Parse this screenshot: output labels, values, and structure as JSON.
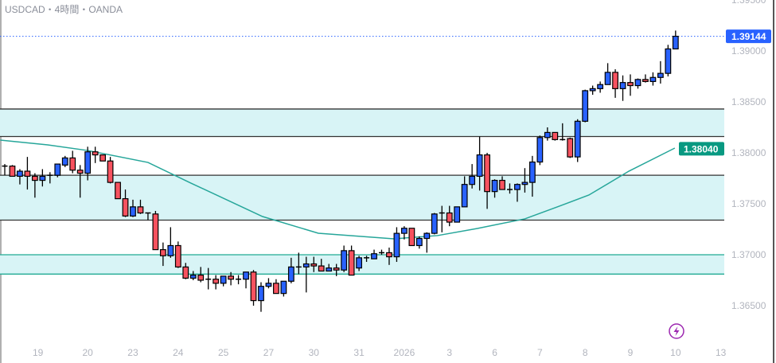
{
  "header": {
    "title": "USDCAD・4時間・OANDA"
  },
  "colors": {
    "up": "#2962ff",
    "down": "#f7525f",
    "ma": "#26a69a",
    "zone_fill": "#d8f4f6",
    "zone_line": "#333333",
    "zone_line_teal": "#22ab94",
    "price_badge": "#2962ff",
    "ma_badge": "#089981",
    "lightning": "#9c27b0"
  },
  "chart_data": {
    "type": "candlestick",
    "symbol": "USDCAD",
    "timeframe": "4時間",
    "source": "OANDA",
    "ylim": [
      1.3635,
      1.3956
    ],
    "y_ticks": [
      "1.39500",
      "1.39000",
      "1.38500",
      "1.38000",
      "1.37500",
      "1.37000",
      "1.36500"
    ],
    "y_tick_values": [
      1.395,
      1.39,
      1.385,
      1.38,
      1.375,
      1.37,
      1.365
    ],
    "x_ticks": [
      {
        "label": "19",
        "index": 4.4
      },
      {
        "label": "20",
        "index": 11
      },
      {
        "label": "23",
        "index": 17
      },
      {
        "label": "24",
        "index": 23
      },
      {
        "label": "25",
        "index": 29
      },
      {
        "label": "27",
        "index": 35
      },
      {
        "label": "30",
        "index": 41
      },
      {
        "label": "31",
        "index": 47
      },
      {
        "label": "2026",
        "index": 53
      },
      {
        "label": "3",
        "index": 59
      },
      {
        "label": "6",
        "index": 65
      },
      {
        "label": "7",
        "index": 71
      },
      {
        "label": "8",
        "index": 77
      },
      {
        "label": "9",
        "index": 83
      },
      {
        "label": "10",
        "index": 89
      },
      {
        "label": "13",
        "index": 95
      }
    ],
    "ohlc": [
      [
        1.3787,
        1.3789,
        1.3778,
        1.3787
      ],
      [
        1.3787,
        1.3788,
        1.3777,
        1.3777
      ],
      [
        1.3777,
        1.3784,
        1.3769,
        1.3782
      ],
      [
        1.3782,
        1.3796,
        1.3764,
        1.3777
      ],
      [
        1.3777,
        1.378,
        1.3756,
        1.3773
      ],
      [
        1.3773,
        1.3784,
        1.3767,
        1.3777
      ],
      [
        1.3778,
        1.3781,
        1.377,
        1.3778
      ],
      [
        1.3778,
        1.3789,
        1.3776,
        1.3789
      ],
      [
        1.3788,
        1.3797,
        1.3786,
        1.3795
      ],
      [
        1.3795,
        1.3802,
        1.378,
        1.3783
      ],
      [
        1.3783,
        1.3788,
        1.3756,
        1.378
      ],
      [
        1.378,
        1.3806,
        1.3773,
        1.3801
      ],
      [
        1.3801,
        1.3806,
        1.379,
        1.3798
      ],
      [
        1.3798,
        1.3798,
        1.3792,
        1.3792
      ],
      [
        1.3792,
        1.3796,
        1.377,
        1.3771
      ],
      [
        1.3771,
        1.3771,
        1.3755,
        1.3755
      ],
      [
        1.3755,
        1.3764,
        1.3737,
        1.3738
      ],
      [
        1.3738,
        1.3754,
        1.3737,
        1.3747
      ],
      [
        1.3747,
        1.3754,
        1.374,
        1.3741
      ],
      [
        1.3741,
        1.3741,
        1.3734,
        1.374
      ],
      [
        1.374,
        1.3743,
        1.3705,
        1.3705
      ],
      [
        1.3705,
        1.3712,
        1.3689,
        1.3699
      ],
      [
        1.3699,
        1.3727,
        1.3697,
        1.3709
      ],
      [
        1.3709,
        1.3713,
        1.3687,
        1.3688
      ],
      [
        1.3688,
        1.3692,
        1.3676,
        1.3677
      ],
      [
        1.3677,
        1.3684,
        1.3675,
        1.368
      ],
      [
        1.368,
        1.3688,
        1.3673,
        1.3675
      ],
      [
        1.3676,
        1.3687,
        1.3666,
        1.3676
      ],
      [
        1.3676,
        1.368,
        1.3666,
        1.3672
      ],
      [
        1.3672,
        1.3679,
        1.3669,
        1.3679
      ],
      [
        1.3679,
        1.3683,
        1.367,
        1.3676
      ],
      [
        1.3676,
        1.368,
        1.3671,
        1.3676
      ],
      [
        1.3676,
        1.3683,
        1.3667,
        1.3683
      ],
      [
        1.3683,
        1.3685,
        1.365,
        1.3655
      ],
      [
        1.3655,
        1.3673,
        1.3644,
        1.3669
      ],
      [
        1.3669,
        1.3677,
        1.3667,
        1.3672
      ],
      [
        1.3672,
        1.3676,
        1.3662,
        1.3662
      ],
      [
        1.3662,
        1.3674,
        1.3659,
        1.3674
      ],
      [
        1.3674,
        1.3697,
        1.3672,
        1.3688
      ],
      [
        1.3688,
        1.3702,
        1.3681,
        1.3688
      ],
      [
        1.3688,
        1.3698,
        1.3663,
        1.3691
      ],
      [
        1.3691,
        1.3698,
        1.3683,
        1.3689
      ],
      [
        1.3689,
        1.3696,
        1.3684,
        1.3684
      ],
      [
        1.3684,
        1.3691,
        1.3684,
        1.3687
      ],
      [
        1.3687,
        1.3691,
        1.3679,
        1.3685
      ],
      [
        1.3685,
        1.3709,
        1.3683,
        1.3704
      ],
      [
        1.3704,
        1.3709,
        1.368,
        1.368
      ],
      [
        1.3687,
        1.3699,
        1.3684,
        1.3697
      ],
      [
        1.3697,
        1.3699,
        1.3693,
        1.3697
      ],
      [
        1.3696,
        1.3705,
        1.3696,
        1.3701
      ],
      [
        1.3701,
        1.3705,
        1.37,
        1.3702
      ],
      [
        1.3702,
        1.3707,
        1.369,
        1.3698
      ],
      [
        1.3698,
        1.3727,
        1.3693,
        1.3721
      ],
      [
        1.3721,
        1.3728,
        1.3715,
        1.3726
      ],
      [
        1.3726,
        1.3726,
        1.3709,
        1.3709
      ],
      [
        1.3709,
        1.3718,
        1.3706,
        1.3716
      ],
      [
        1.3716,
        1.3722,
        1.3702,
        1.3721
      ],
      [
        1.3721,
        1.3741,
        1.372,
        1.374
      ],
      [
        1.3741,
        1.3748,
        1.3722,
        1.3741
      ],
      [
        1.3741,
        1.3748,
        1.3728,
        1.3732
      ],
      [
        1.3732,
        1.3747,
        1.3732,
        1.3747
      ],
      [
        1.3747,
        1.3777,
        1.3747,
        1.3769
      ],
      [
        1.3769,
        1.3789,
        1.3765,
        1.3777
      ],
      [
        1.3777,
        1.3816,
        1.3763,
        1.3798
      ],
      [
        1.3798,
        1.38,
        1.3745,
        1.3762
      ],
      [
        1.3762,
        1.3774,
        1.3756,
        1.3773
      ],
      [
        1.3773,
        1.3777,
        1.3764,
        1.3764
      ],
      [
        1.3764,
        1.377,
        1.376,
        1.3764
      ],
      [
        1.3764,
        1.377,
        1.3752,
        1.3769
      ],
      [
        1.3769,
        1.3785,
        1.3761,
        1.3771
      ],
      [
        1.3771,
        1.3797,
        1.3757,
        1.3791
      ],
      [
        1.3791,
        1.3817,
        1.3788,
        1.3815
      ],
      [
        1.3815,
        1.3825,
        1.3812,
        1.382
      ],
      [
        1.382,
        1.382,
        1.3812,
        1.3813
      ],
      [
        1.3813,
        1.3829,
        1.3812,
        1.3813
      ],
      [
        1.3814,
        1.3815,
        1.3795,
        1.3796
      ],
      [
        1.3796,
        1.3833,
        1.3791,
        1.3831
      ],
      [
        1.3831,
        1.3862,
        1.383,
        1.3861
      ],
      [
        1.3861,
        1.3866,
        1.3857,
        1.3863
      ],
      [
        1.3863,
        1.387,
        1.3859,
        1.3867
      ],
      [
        1.3867,
        1.3888,
        1.3867,
        1.3879
      ],
      [
        1.3879,
        1.3882,
        1.3854,
        1.3863
      ],
      [
        1.3863,
        1.3876,
        1.3851,
        1.3869
      ],
      [
        1.3869,
        1.3877,
        1.3856,
        1.3866
      ],
      [
        1.3866,
        1.3873,
        1.3863,
        1.3872
      ],
      [
        1.3872,
        1.3877,
        1.3869,
        1.387
      ],
      [
        1.387,
        1.3879,
        1.3866,
        1.3874
      ],
      [
        1.3874,
        1.389,
        1.3868,
        1.3878
      ],
      [
        1.3878,
        1.3906,
        1.3875,
        1.3902
      ],
      [
        1.3902,
        1.392,
        1.3902,
        1.39144
      ]
    ],
    "moving_average": [
      [
        -0.6,
        1.38125
      ],
      [
        5.7,
        1.38078
      ],
      [
        11,
        1.38023
      ],
      [
        19,
        1.37906
      ],
      [
        24.7,
        1.37703
      ],
      [
        34.2,
        1.37375
      ],
      [
        41.6,
        1.37211
      ],
      [
        51.6,
        1.37156
      ],
      [
        57.4,
        1.37188
      ],
      [
        62.7,
        1.37258
      ],
      [
        69,
        1.37352
      ],
      [
        73.3,
        1.37469
      ],
      [
        77.5,
        1.37586
      ],
      [
        82.8,
        1.3782
      ],
      [
        88.9,
        1.38047
      ]
    ],
    "zones": [
      {
        "top": 1.3843,
        "bottom": 1.3816,
        "line": "dark"
      },
      {
        "top": 1.3778,
        "bottom": 1.3734,
        "line": "dark"
      },
      {
        "top": 1.37,
        "bottom": 1.3681,
        "line": "teal"
      }
    ],
    "last_price": 1.39144,
    "last_price_label": "1.39144",
    "ma_value": 1.3804,
    "ma_label": "1.38040"
  }
}
